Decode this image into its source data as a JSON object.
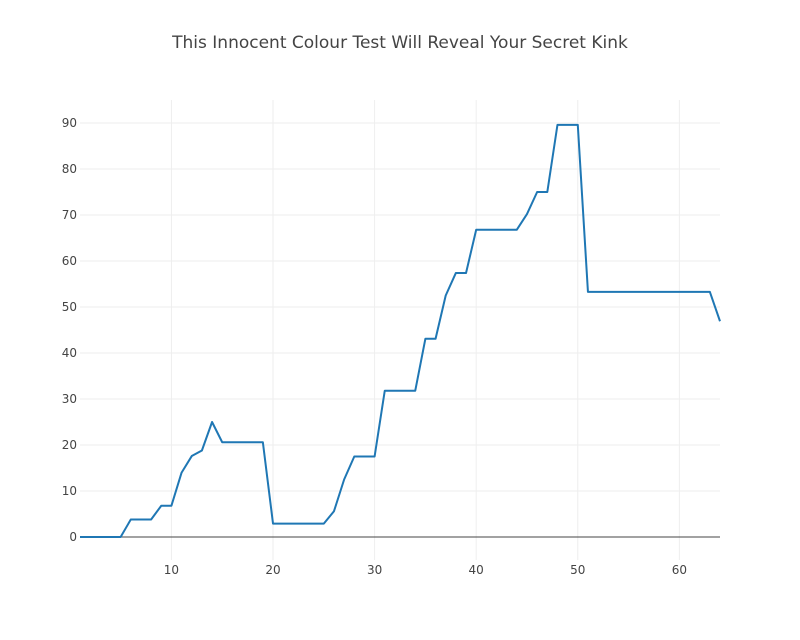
{
  "chart_data": {
    "type": "line",
    "title": "This Innocent Colour Test Will Reveal Your Secret Kink",
    "xlabel": "",
    "ylabel": "",
    "xlim": [
      1,
      64
    ],
    "ylim": [
      -5,
      95
    ],
    "grid": true,
    "x_ticks": [
      10,
      20,
      30,
      40,
      50,
      60
    ],
    "y_ticks": [
      0,
      10,
      20,
      30,
      40,
      50,
      60,
      70,
      80,
      90
    ],
    "colors": {
      "line": "#1f77b4",
      "grid": "#eeeeee",
      "zeroline": "#444444"
    },
    "series": [
      {
        "x": [
          1,
          2,
          3,
          4,
          5,
          6,
          7,
          8,
          9,
          10,
          11,
          12,
          13,
          14,
          15,
          16,
          17,
          18,
          19,
          20,
          21,
          22,
          23,
          24,
          25,
          26,
          27,
          28,
          29,
          30,
          31,
          32,
          33,
          34,
          35,
          36,
          37,
          38,
          39,
          40,
          41,
          42,
          43,
          44,
          45,
          46,
          47,
          48,
          49,
          50,
          51,
          52,
          53,
          54,
          55,
          56,
          57,
          58,
          59,
          60,
          61,
          62,
          63,
          64
        ],
        "values": [
          0,
          0,
          0,
          0,
          0,
          3.8,
          3.8,
          3.8,
          6.8,
          6.8,
          14,
          17.6,
          18.8,
          25,
          20.6,
          20.6,
          20.6,
          20.6,
          20.6,
          2.9,
          2.9,
          2.9,
          2.9,
          2.9,
          2.9,
          5.6,
          12.5,
          17.5,
          17.5,
          17.5,
          31.8,
          31.8,
          31.8,
          31.8,
          43.1,
          43.1,
          52.5,
          57.4,
          57.4,
          66.8,
          66.8,
          66.8,
          66.8,
          66.8,
          70.2,
          75,
          75,
          89.6,
          89.6,
          89.6,
          53.3,
          53.3,
          53.3,
          53.3,
          53.3,
          53.3,
          53.3,
          53.3,
          53.3,
          53.3,
          53.3,
          53.3,
          53.3,
          46.9
        ]
      }
    ]
  }
}
